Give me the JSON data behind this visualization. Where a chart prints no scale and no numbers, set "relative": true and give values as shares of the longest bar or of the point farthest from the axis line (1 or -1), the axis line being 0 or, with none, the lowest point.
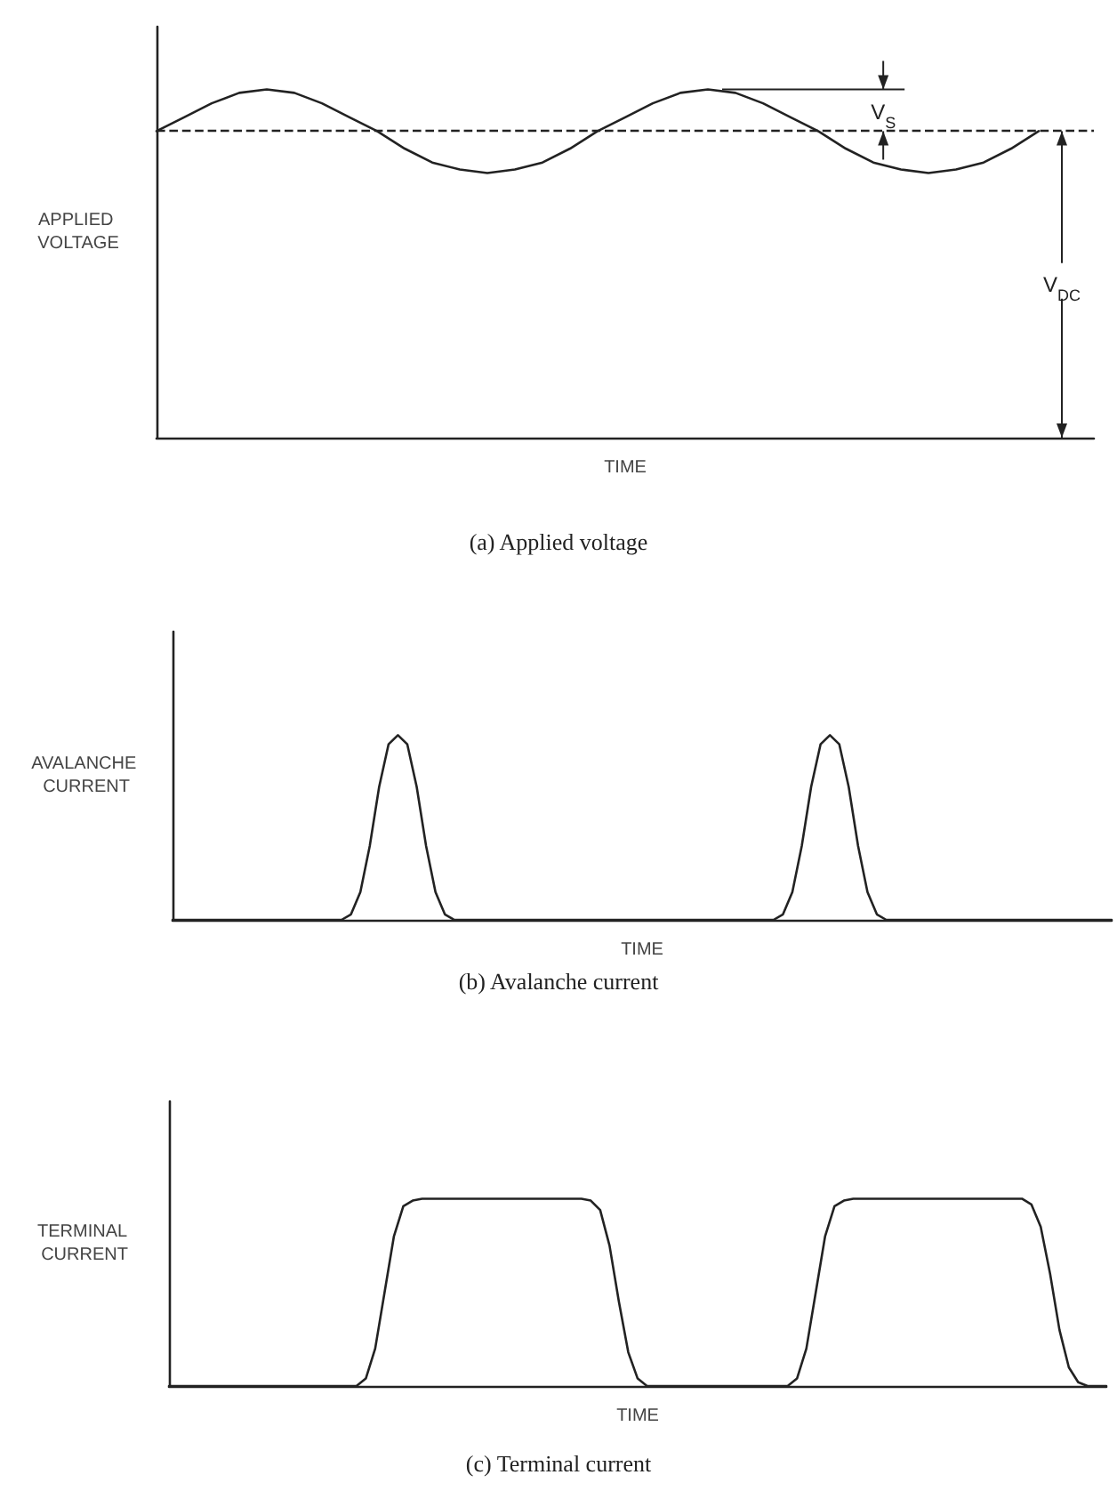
{
  "chart_data": [
    {
      "type": "line",
      "title": "(a) Applied voltage",
      "xlabel": "TIME",
      "ylabel": "APPLIED VOLTAGE",
      "relative": true,
      "line_style": "solid",
      "annotations": [
        "V$_{S}$",
        "V$_{DC}$"
      ],
      "ref_lines": [
        {
          "axis": "y",
          "value": 0.88,
          "line_style": "dashed",
          "color": "#222222"
        }
      ],
      "categories": [
        null,
        null,
        null,
        null,
        null,
        null,
        null,
        null,
        null,
        null,
        null,
        null,
        null,
        null,
        null,
        null,
        null,
        null,
        null,
        null,
        null,
        null,
        null,
        null,
        null,
        null,
        null,
        null,
        null,
        null,
        null,
        null,
        null,
        null,
        null
      ],
      "series": [
        {
          "color": "#222222",
          "values": [
            0.88,
            0.92,
            0.96,
            0.99,
            1,
            0.99,
            0.96,
            0.92,
            0.88,
            0.83,
            0.79,
            0.77,
            0.76,
            0.77,
            0.79,
            0.83,
            0.88,
            0.92,
            0.96,
            0.99,
            1,
            0.99,
            0.96,
            0.92,
            0.88,
            0.83,
            0.79,
            0.77,
            0.76,
            0.77,
            0.79,
            0.83,
            0.88,
            null,
            null
          ]
        }
      ]
    },
    {
      "type": "line",
      "title": "(b) Avalanche current",
      "xlabel": "TIME",
      "ylabel": "AVALANCHE CURRENT",
      "relative": true,
      "line_style": "solid",
      "categories": [
        null,
        null,
        null,
        null,
        null,
        null,
        null,
        null,
        null,
        null,
        null,
        null,
        null,
        null,
        null,
        null,
        null,
        null,
        null,
        null,
        null,
        null,
        null,
        null,
        null,
        null,
        null,
        null,
        null,
        null,
        null,
        null,
        null,
        null,
        null,
        null,
        null,
        null,
        null,
        null,
        null,
        null,
        null,
        null,
        null,
        null,
        null,
        null,
        null,
        null,
        null,
        null,
        null,
        null,
        null,
        null,
        null,
        null,
        null,
        null,
        null,
        null,
        null,
        null,
        null,
        null,
        null,
        null,
        null,
        null,
        null,
        null,
        null,
        null,
        null,
        null,
        null,
        null,
        null,
        null,
        null,
        null,
        null,
        null,
        null,
        null,
        null,
        null,
        null,
        null,
        null,
        null,
        null,
        null,
        null,
        null,
        null,
        null,
        null,
        null,
        null
      ],
      "series": [
        {
          "color": "#222222",
          "values": [
            0,
            0,
            0,
            0,
            0,
            0,
            0,
            0,
            0,
            0,
            0,
            0,
            0,
            0,
            0,
            0,
            0,
            0,
            0,
            0.03,
            0.15,
            0.4,
            0.72,
            0.95,
            1,
            0.95,
            0.72,
            0.4,
            0.15,
            0.03,
            0,
            0,
            0,
            0,
            0,
            0,
            0,
            0,
            0,
            0,
            0,
            0,
            0,
            0,
            0,
            0,
            0,
            0,
            0,
            0,
            0,
            0,
            0,
            0,
            0,
            0,
            0,
            0,
            0,
            0,
            0,
            0,
            0,
            0,
            0,
            0.03,
            0.15,
            0.4,
            0.72,
            0.95,
            1,
            0.95,
            0.72,
            0.4,
            0.15,
            0.03,
            0,
            0,
            0,
            0,
            0,
            0,
            0,
            0,
            0,
            0,
            0,
            0,
            0,
            0,
            0,
            0,
            0,
            0,
            0,
            0,
            0,
            0,
            0,
            0,
            0
          ]
        }
      ]
    },
    {
      "type": "line",
      "title": "(c) Terminal current",
      "xlabel": "TIME",
      "ylabel": "TERMINAL CURRENT",
      "relative": true,
      "line_style": "solid",
      "categories": [
        null,
        null,
        null,
        null,
        null,
        null,
        null,
        null,
        null,
        null,
        null,
        null,
        null,
        null,
        null,
        null,
        null,
        null,
        null,
        null,
        null,
        null,
        null,
        null,
        null,
        null,
        null,
        null,
        null,
        null,
        null,
        null,
        null,
        null,
        null,
        null,
        null,
        null,
        null,
        null,
        null,
        null,
        null,
        null,
        null,
        null,
        null,
        null,
        null,
        null,
        null,
        null,
        null,
        null,
        null,
        null,
        null,
        null,
        null,
        null,
        null,
        null,
        null,
        null,
        null,
        null,
        null,
        null,
        null,
        null,
        null,
        null,
        null,
        null,
        null,
        null,
        null,
        null,
        null,
        null,
        null,
        null,
        null,
        null,
        null,
        null,
        null,
        null,
        null,
        null,
        null,
        null,
        null,
        null,
        null,
        null,
        null,
        null,
        null,
        null,
        null
      ],
      "series": [
        {
          "color": "#222222",
          "values": [
            0,
            0,
            0,
            0,
            0,
            0,
            0,
            0,
            0,
            0,
            0,
            0,
            0,
            0,
            0,
            0,
            0,
            0,
            0,
            0,
            0,
            0.04,
            0.2,
            0.5,
            0.8,
            0.96,
            0.99,
            1,
            1,
            1,
            1,
            1,
            1,
            1,
            1,
            1,
            1,
            1,
            1,
            1,
            1,
            1,
            1,
            1,
            1,
            0.99,
            0.94,
            0.75,
            0.45,
            0.18,
            0.04,
            0,
            0,
            0,
            0,
            0,
            0,
            0,
            0,
            0,
            0,
            0,
            0,
            0,
            0,
            0,
            0,
            0.04,
            0.2,
            0.5,
            0.8,
            0.96,
            0.99,
            1,
            1,
            1,
            1,
            1,
            1,
            1,
            1,
            1,
            1,
            1,
            1,
            1,
            1,
            1,
            1,
            1,
            1,
            1,
            0.97,
            0.85,
            0.6,
            0.3,
            0.1,
            0.02,
            0,
            0,
            0
          ]
        }
      ]
    }
  ]
}
